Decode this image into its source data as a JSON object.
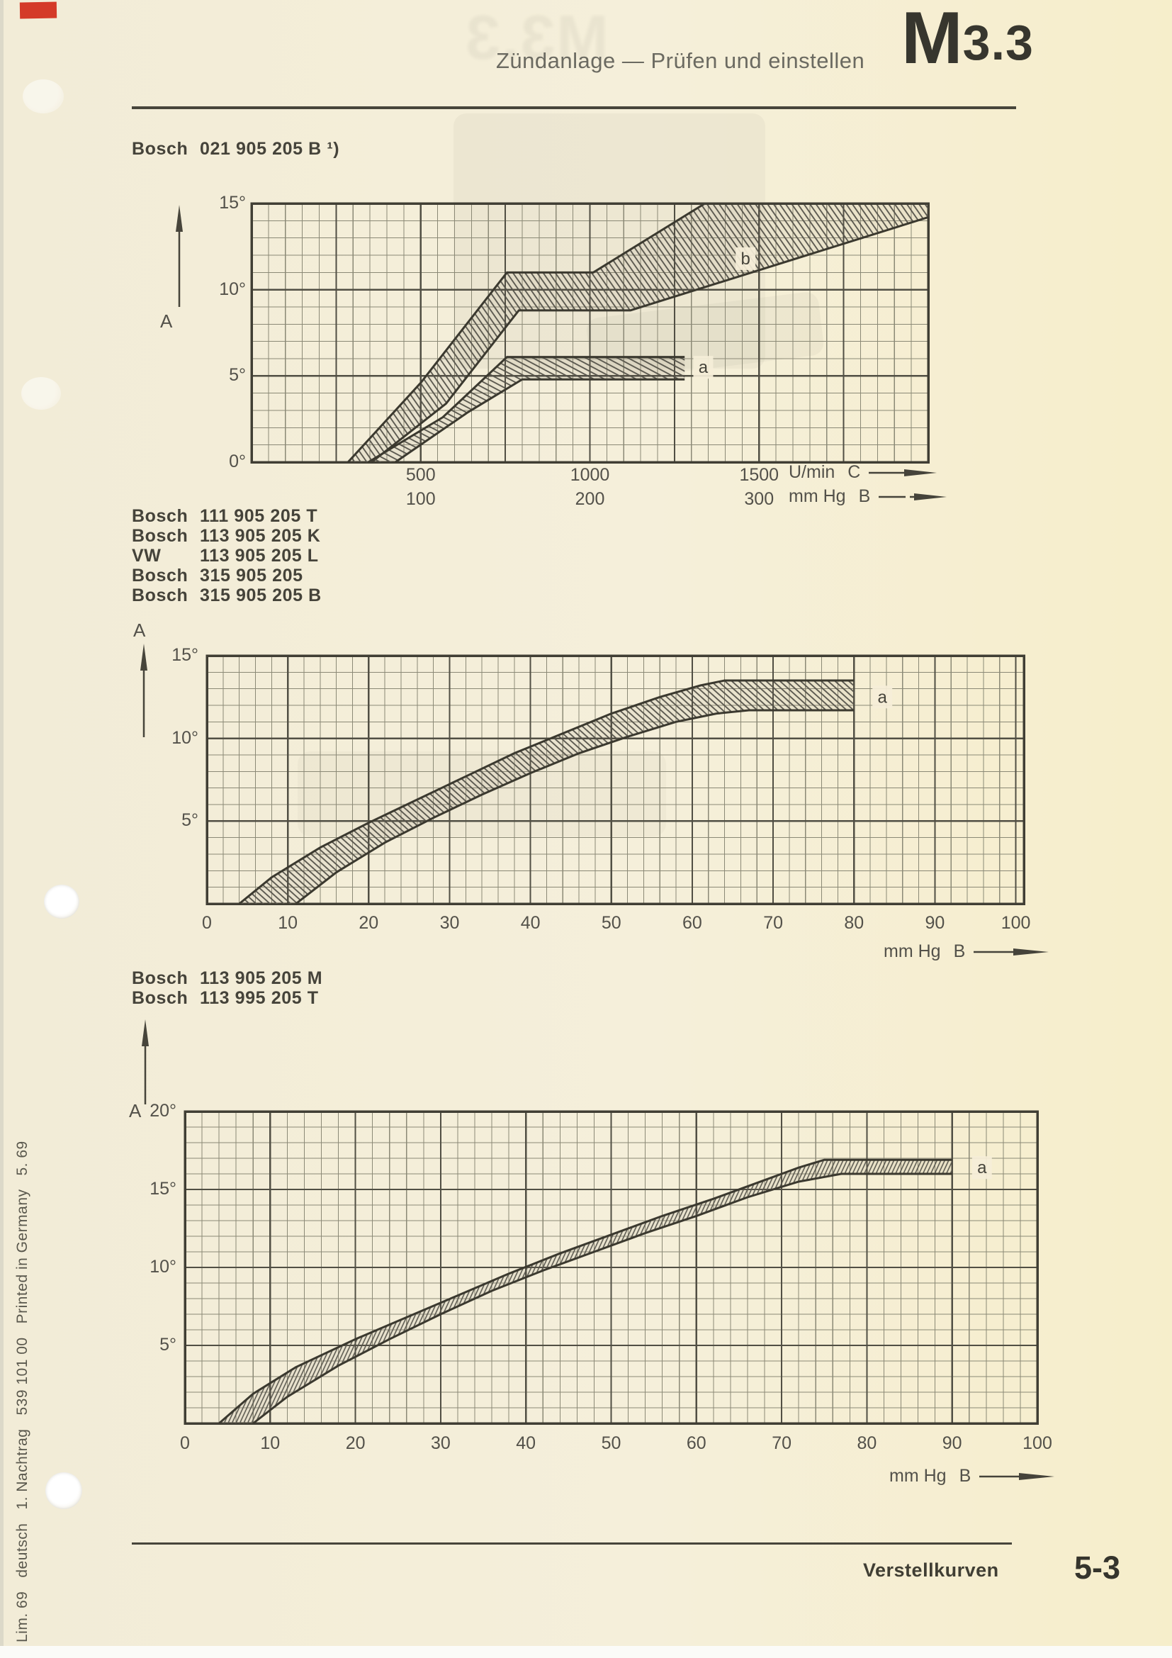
{
  "header": {
    "title": "Zündanlage — Prüfen und einstellen",
    "code_main": "M",
    "code_sub": "3.3"
  },
  "footer": {
    "label": "Verstellkurven",
    "page": "5-3"
  },
  "margin_text": "Lim. 69   deutsch   1. Nachtrag   539 101 00   Printed in Germany   5. 69",
  "chart_data": [
    {
      "type": "area",
      "title_lines": [
        {
          "brand": "Bosch",
          "number": "021 905 205 B ¹)"
        }
      ],
      "x_axis": {
        "range": [
          0,
          2000
        ],
        "unit_rows": [
          {
            "unit": "U/min",
            "axis_letter": "C"
          },
          {
            "unit": "mm Hg",
            "axis_letter": "B"
          }
        ],
        "tick_rows": [
          {
            "labels": [
              "500",
              "1000",
              "1500"
            ],
            "positions": [
              500,
              1000,
              1500
            ]
          },
          {
            "labels": [
              "100",
              "200",
              "300"
            ],
            "positions": [
              500,
              1000,
              1500
            ]
          }
        ]
      },
      "y_axis": {
        "axis_letter": "A",
        "labels": [
          "15°",
          "10°",
          "5°",
          "0°"
        ],
        "positions": [
          15,
          10,
          5,
          0
        ],
        "range": [
          0,
          15
        ]
      },
      "bands": [
        {
          "name": "b",
          "label": "b",
          "label_at": [
            1460,
            11.8
          ],
          "upper": [
            [
              285,
              0
            ],
            [
              500,
              4.6
            ],
            [
              755,
              11
            ],
            [
              1010,
              11
            ],
            [
              1340,
              15
            ],
            [
              2000,
              15
            ]
          ],
          "lower": [
            [
              355,
              0
            ],
            [
              575,
              3.4
            ],
            [
              790,
              8.8
            ],
            [
              1120,
              8.8
            ],
            [
              2000,
              14.2
            ]
          ]
        },
        {
          "name": "a",
          "label": "a",
          "label_at": [
            1335,
            5.5
          ],
          "upper": [
            [
              345,
              0
            ],
            [
              565,
              2.6
            ],
            [
              755,
              6.1
            ],
            [
              1280,
              6.1
            ]
          ],
          "lower": [
            [
              425,
              0
            ],
            [
              640,
              2.9
            ],
            [
              800,
              4.8
            ],
            [
              1280,
              4.8
            ]
          ]
        }
      ]
    },
    {
      "type": "area",
      "title_lines": [
        {
          "brand": "Bosch",
          "number": "111 905 205 T"
        },
        {
          "brand": "Bosch",
          "number": "113 905 205 K"
        },
        {
          "brand": "VW",
          "number": "113 905 205 L"
        },
        {
          "brand": "Bosch",
          "number": "315 905 205"
        },
        {
          "brand": "Bosch",
          "number": "315 905 205 B"
        }
      ],
      "x_axis": {
        "range": [
          0,
          101
        ],
        "unit_rows": [
          {
            "unit": "mm Hg",
            "axis_letter": "B"
          }
        ],
        "tick_rows": [
          {
            "labels": [
              "0",
              "10",
              "20",
              "30",
              "40",
              "50",
              "60",
              "70",
              "80",
              "90",
              "100"
            ],
            "positions": [
              0,
              10,
              20,
              30,
              40,
              50,
              60,
              70,
              80,
              90,
              100
            ]
          }
        ]
      },
      "y_axis": {
        "axis_letter": "A",
        "labels": [
          "15°",
          "10°",
          "5°"
        ],
        "positions": [
          15,
          10,
          5
        ],
        "range": [
          0,
          15
        ]
      },
      "bands": [
        {
          "name": "a",
          "label": "a",
          "label_at": [
            83.5,
            12.5
          ],
          "upper": [
            [
              4,
              0
            ],
            [
              8,
              1.6
            ],
            [
              14,
              3.4
            ],
            [
              20,
              4.9
            ],
            [
              26,
              6.3
            ],
            [
              32,
              7.7
            ],
            [
              38,
              9.1
            ],
            [
              44,
              10.3
            ],
            [
              50,
              11.5
            ],
            [
              56,
              12.5
            ],
            [
              61,
              13.2
            ],
            [
              64,
              13.5
            ],
            [
              80,
              13.5
            ]
          ],
          "lower": [
            [
              11,
              0
            ],
            [
              16,
              1.9
            ],
            [
              22,
              3.7
            ],
            [
              28,
              5.2
            ],
            [
              34,
              6.6
            ],
            [
              40,
              7.9
            ],
            [
              46,
              9.1
            ],
            [
              52,
              10.1
            ],
            [
              58,
              11.0
            ],
            [
              63,
              11.5
            ],
            [
              67,
              11.7
            ],
            [
              80,
              11.7
            ]
          ]
        }
      ]
    },
    {
      "type": "area",
      "title_lines": [
        {
          "brand": "Bosch",
          "number": "113 905 205 M"
        },
        {
          "brand": "Bosch",
          "number": "113 995 205 T"
        }
      ],
      "x_axis": {
        "range": [
          0,
          100
        ],
        "unit_rows": [
          {
            "unit": "mm Hg",
            "axis_letter": "B"
          }
        ],
        "tick_rows": [
          {
            "labels": [
              "0",
              "10",
              "20",
              "30",
              "40",
              "50",
              "60",
              "70",
              "80",
              "90",
              "100"
            ],
            "positions": [
              0,
              10,
              20,
              30,
              40,
              50,
              60,
              70,
              80,
              90,
              100
            ]
          }
        ]
      },
      "y_axis": {
        "axis_letter": "A",
        "labels": [
          "20°",
          "15°",
          "10°",
          "5°"
        ],
        "positions": [
          20,
          15,
          10,
          5
        ],
        "range": [
          0,
          20
        ]
      },
      "bands": [
        {
          "name": "a",
          "label": "a",
          "label_at": [
            93.5,
            16.4
          ],
          "upper": [
            [
              4,
              0
            ],
            [
              8,
              1.9
            ],
            [
              13,
              3.6
            ],
            [
              20,
              5.4
            ],
            [
              26,
              6.8
            ],
            [
              32,
              8.2
            ],
            [
              38,
              9.6
            ],
            [
              44,
              10.9
            ],
            [
              50,
              12.1
            ],
            [
              56,
              13.3
            ],
            [
              62,
              14.4
            ],
            [
              68,
              15.6
            ],
            [
              72,
              16.4
            ],
            [
              75,
              16.9
            ],
            [
              90,
              16.9
            ]
          ],
          "lower": [
            [
              8,
              0
            ],
            [
              12,
              1.7
            ],
            [
              18,
              3.7
            ],
            [
              24,
              5.4
            ],
            [
              30,
              7.0
            ],
            [
              36,
              8.5
            ],
            [
              42,
              9.8
            ],
            [
              48,
              11.0
            ],
            [
              54,
              12.2
            ],
            [
              60,
              13.3
            ],
            [
              66,
              14.5
            ],
            [
              72,
              15.5
            ],
            [
              77,
              16.0
            ],
            [
              90,
              16.0
            ]
          ]
        }
      ]
    }
  ]
}
